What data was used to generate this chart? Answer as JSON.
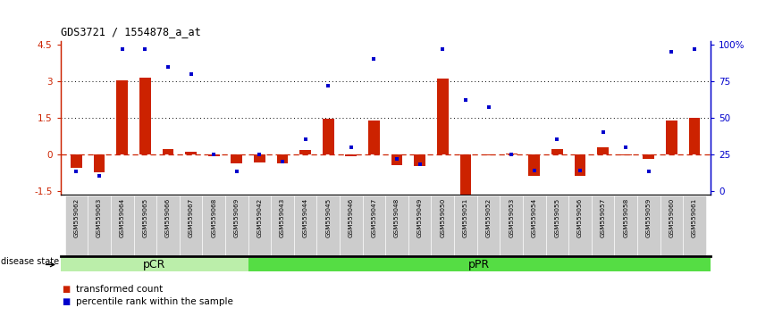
{
  "title": "GDS3721 / 1554878_a_at",
  "samples": [
    "GSM559062",
    "GSM559063",
    "GSM559064",
    "GSM559065",
    "GSM559066",
    "GSM559067",
    "GSM559068",
    "GSM559069",
    "GSM559042",
    "GSM559043",
    "GSM559044",
    "GSM559045",
    "GSM559046",
    "GSM559047",
    "GSM559048",
    "GSM559049",
    "GSM559050",
    "GSM559051",
    "GSM559052",
    "GSM559053",
    "GSM559054",
    "GSM559055",
    "GSM559056",
    "GSM559057",
    "GSM559058",
    "GSM559059",
    "GSM559060",
    "GSM559061"
  ],
  "transformed_count": [
    -0.55,
    -0.75,
    3.05,
    3.15,
    0.2,
    0.1,
    -0.08,
    -0.38,
    -0.35,
    -0.38,
    0.18,
    1.45,
    -0.1,
    1.4,
    -0.45,
    -0.5,
    3.1,
    -1.65,
    -0.05,
    0.02,
    -0.9,
    0.2,
    -0.9,
    0.3,
    -0.05,
    -0.2,
    1.4,
    1.5
  ],
  "percentile_rank": [
    13,
    10,
    97,
    97,
    85,
    80,
    25,
    13,
    25,
    20,
    35,
    72,
    30,
    90,
    22,
    18,
    97,
    62,
    57,
    25,
    14,
    35,
    14,
    40,
    30,
    13,
    95,
    97
  ],
  "pCR_count": 8,
  "bar_color": "#cc2200",
  "dot_color": "#0000cc",
  "bar_width": 0.5,
  "pCR_color": "#bbeeaa",
  "pPR_color": "#55dd44",
  "tick_bg_color": "#cccccc",
  "disease_state_label": "disease state",
  "legend_bar": "transformed count",
  "legend_dot": "percentile rank within the sample",
  "left_ylim": [
    -1.65,
    4.65
  ],
  "left_yticks": [
    -1.5,
    0.0,
    1.5,
    3.0,
    4.5
  ],
  "left_ytick_labels": [
    "-1.5",
    "0",
    "1.5",
    "3",
    "4.5"
  ],
  "right_yticks": [
    0,
    25,
    50,
    75,
    100
  ],
  "right_ytick_labels": [
    "0",
    "25",
    "50",
    "75",
    "100%"
  ]
}
